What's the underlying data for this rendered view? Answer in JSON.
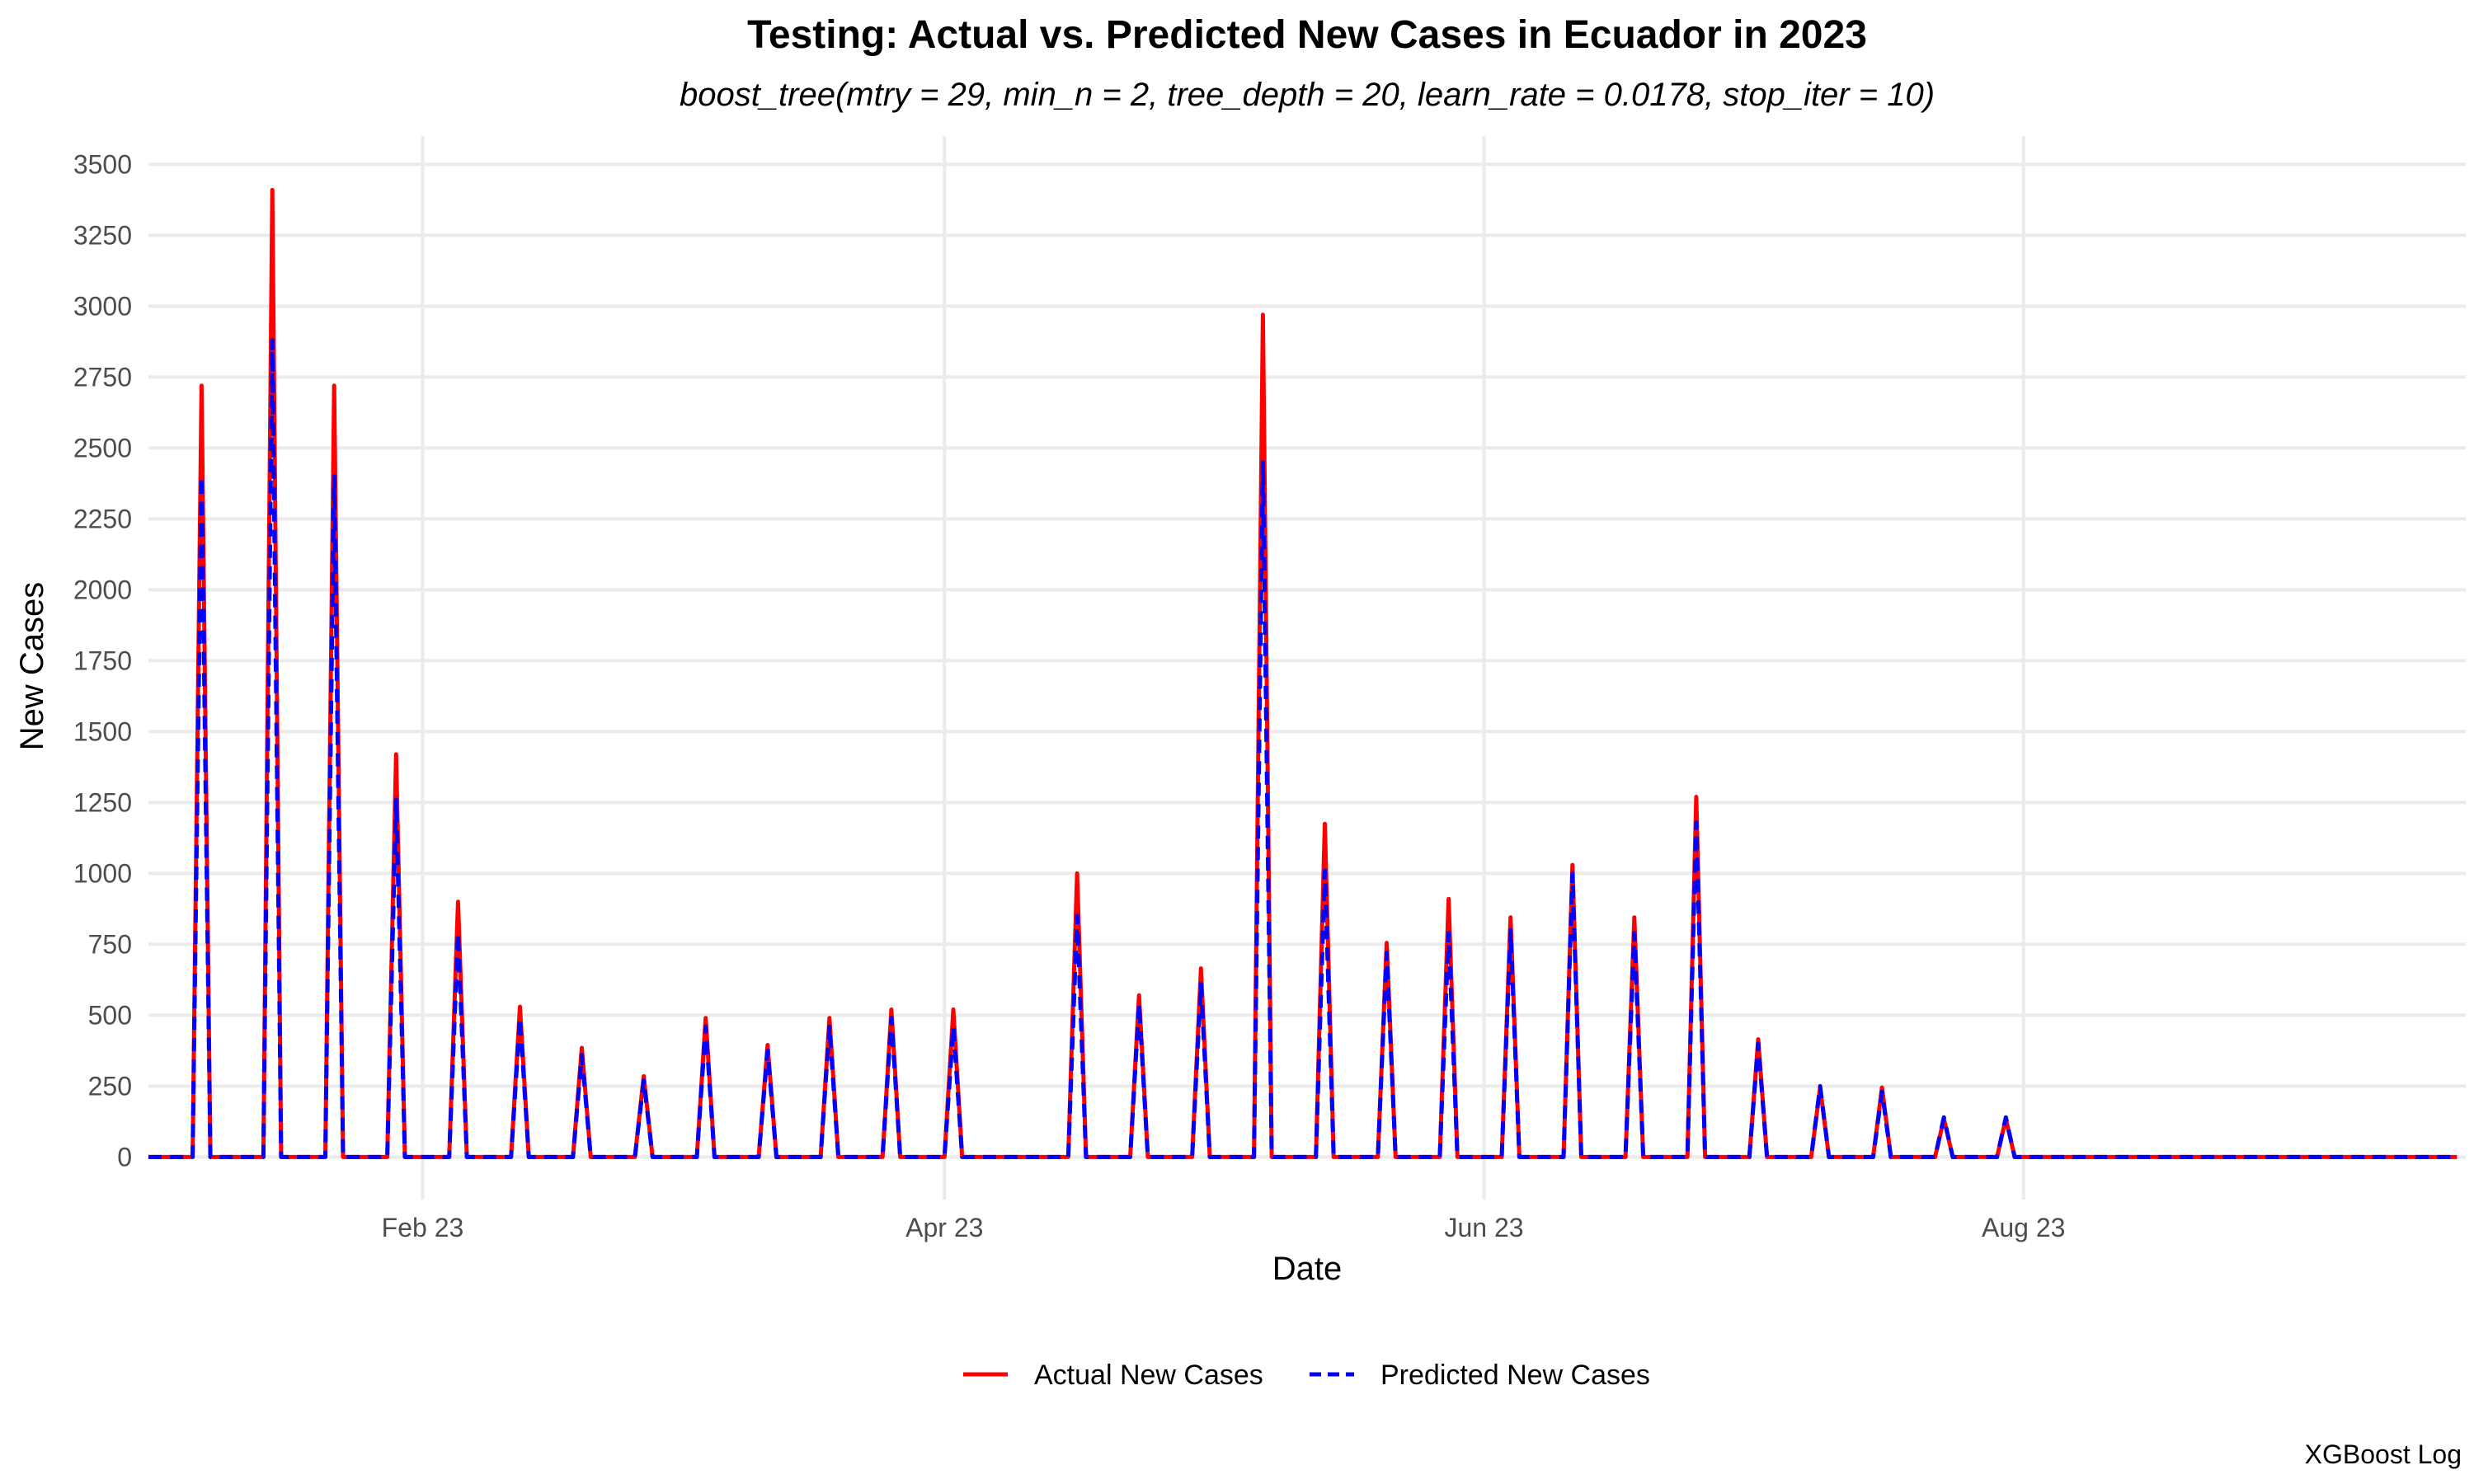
{
  "chart_data": {
    "type": "line",
    "title": "Testing: Actual vs. Predicted New Cases in Ecuador in 2023",
    "subtitle": "boost_tree(mtry = 29, min_n = 2, tree_depth = 20, learn_rate = 0.0178, stop_iter = 10)",
    "xlabel": "Date",
    "ylabel": "New Cases",
    "caption": "XGBoost Log",
    "xlim": [
      "2023-01-01",
      "2023-09-20"
    ],
    "ylim": [
      -150,
      3600
    ],
    "yticks": [
      0,
      250,
      500,
      750,
      1000,
      1250,
      1500,
      1750,
      2000,
      2250,
      2500,
      2750,
      3000,
      3250,
      3500
    ],
    "xticks": [
      {
        "date": "2023-02-01",
        "label": "Feb 23"
      },
      {
        "date": "2023-04-01",
        "label": "Apr 23"
      },
      {
        "date": "2023-06-01",
        "label": "Jun 23"
      },
      {
        "date": "2023-08-01",
        "label": "Aug 23"
      }
    ],
    "grid": true,
    "legend_position": "bottom",
    "series": [
      {
        "name": "Actual New Cases",
        "color": "#ff0000",
        "dash": "solid"
      },
      {
        "name": "Predicted New Cases",
        "color": "#0000ff",
        "dash": "dashed"
      }
    ],
    "range": {
      "start": "2023-01-01",
      "end": "2023-09-19"
    },
    "baseline": 0,
    "spikes": [
      {
        "date": "2023-01-07",
        "actual": 2720,
        "predicted": 2400
      },
      {
        "date": "2023-01-15",
        "actual": 3410,
        "predicted": 2880
      },
      {
        "date": "2023-01-22",
        "actual": 2720,
        "predicted": 2400
      },
      {
        "date": "2023-01-29",
        "actual": 1420,
        "predicted": 1260
      },
      {
        "date": "2023-02-05",
        "actual": 900,
        "predicted": 790
      },
      {
        "date": "2023-02-12",
        "actual": 530,
        "predicted": 490
      },
      {
        "date": "2023-02-19",
        "actual": 385,
        "predicted": 360
      },
      {
        "date": "2023-02-26",
        "actual": 285,
        "predicted": 270
      },
      {
        "date": "2023-03-05",
        "actual": 490,
        "predicted": 460
      },
      {
        "date": "2023-03-12",
        "actual": 395,
        "predicted": 375
      },
      {
        "date": "2023-03-19",
        "actual": 490,
        "predicted": 460
      },
      {
        "date": "2023-03-26",
        "actual": 520,
        "predicted": 490
      },
      {
        "date": "2023-04-02",
        "actual": 520,
        "predicted": 460
      },
      {
        "date": "2023-04-16",
        "actual": 1000,
        "predicted": 850
      },
      {
        "date": "2023-04-23",
        "actual": 570,
        "predicted": 540
      },
      {
        "date": "2023-04-30",
        "actual": 665,
        "predicted": 610
      },
      {
        "date": "2023-05-07",
        "actual": 2970,
        "predicted": 2450
      },
      {
        "date": "2023-05-14",
        "actual": 1175,
        "predicted": 1010
      },
      {
        "date": "2023-05-21",
        "actual": 755,
        "predicted": 720
      },
      {
        "date": "2023-05-28",
        "actual": 910,
        "predicted": 790
      },
      {
        "date": "2023-06-04",
        "actual": 845,
        "predicted": 800
      },
      {
        "date": "2023-06-11",
        "actual": 1030,
        "predicted": 1000
      },
      {
        "date": "2023-06-18",
        "actual": 845,
        "predicted": 790
      },
      {
        "date": "2023-06-25",
        "actual": 1270,
        "predicted": 1180
      },
      {
        "date": "2023-07-02",
        "actual": 415,
        "predicted": 400
      },
      {
        "date": "2023-07-09",
        "actual": 245,
        "predicted": 250
      },
      {
        "date": "2023-07-16",
        "actual": 245,
        "predicted": 230
      },
      {
        "date": "2023-07-23",
        "actual": 135,
        "predicted": 140
      },
      {
        "date": "2023-07-30",
        "actual": 135,
        "predicted": 140
      }
    ]
  }
}
